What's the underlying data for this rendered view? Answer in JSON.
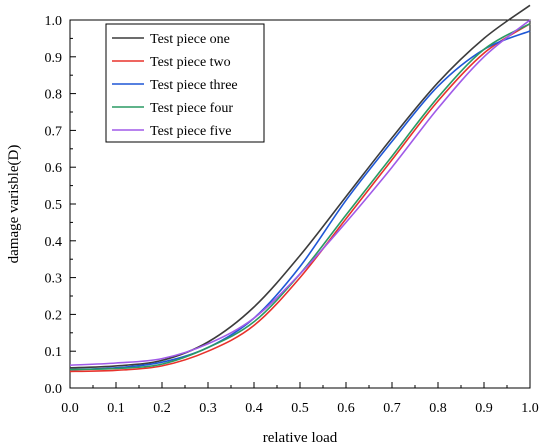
{
  "chart_data": {
    "type": "line",
    "xlabel": "relative load",
    "ylabel": "damage varisble(D)",
    "xlim": [
      0.0,
      1.0
    ],
    "ylim": [
      0.0,
      1.0
    ],
    "x_tick_labels": [
      "0.0",
      "0.1",
      "0.2",
      "0.3",
      "0.4",
      "0.5",
      "0.6",
      "0.7",
      "0.8",
      "0.9",
      "1.0"
    ],
    "y_tick_labels": [
      "0.0",
      "0.1",
      "0.2",
      "0.3",
      "0.4",
      "0.5",
      "0.6",
      "0.7",
      "0.8",
      "0.9",
      "1.0"
    ],
    "grid": false,
    "legend_position": "top-left",
    "series": [
      {
        "name": "Test piece one",
        "color": "#3c3c3c",
        "x": [
          0.0,
          0.1,
          0.2,
          0.3,
          0.4,
          0.5,
          0.6,
          0.7,
          0.8,
          0.9,
          1.0
        ],
        "y": [
          0.055,
          0.06,
          0.075,
          0.125,
          0.22,
          0.36,
          0.52,
          0.68,
          0.83,
          0.95,
          1.04
        ]
      },
      {
        "name": "Test piece two",
        "color": "#e8322b",
        "x": [
          0.0,
          0.1,
          0.2,
          0.3,
          0.4,
          0.5,
          0.6,
          0.7,
          0.8,
          0.9,
          1.0
        ],
        "y": [
          0.045,
          0.048,
          0.06,
          0.1,
          0.17,
          0.3,
          0.46,
          0.62,
          0.78,
          0.91,
          0.99
        ]
      },
      {
        "name": "Test piece three",
        "color": "#1f57d6",
        "x": [
          0.0,
          0.1,
          0.2,
          0.3,
          0.4,
          0.5,
          0.6,
          0.7,
          0.8,
          0.9,
          1.0
        ],
        "y": [
          0.05,
          0.055,
          0.07,
          0.11,
          0.19,
          0.33,
          0.51,
          0.67,
          0.82,
          0.92,
          0.97
        ]
      },
      {
        "name": "Test piece four",
        "color": "#2a9a63",
        "x": [
          0.0,
          0.1,
          0.2,
          0.3,
          0.4,
          0.5,
          0.6,
          0.7,
          0.8,
          0.9,
          1.0
        ],
        "y": [
          0.05,
          0.053,
          0.065,
          0.11,
          0.18,
          0.31,
          0.47,
          0.63,
          0.79,
          0.92,
          0.99
        ]
      },
      {
        "name": "Test piece five",
        "color": "#a05ae8",
        "x": [
          0.0,
          0.1,
          0.2,
          0.3,
          0.4,
          0.5,
          0.6,
          0.7,
          0.8,
          0.9,
          1.0
        ],
        "y": [
          0.062,
          0.068,
          0.08,
          0.12,
          0.19,
          0.31,
          0.45,
          0.6,
          0.76,
          0.9,
          1.0
        ]
      }
    ]
  }
}
